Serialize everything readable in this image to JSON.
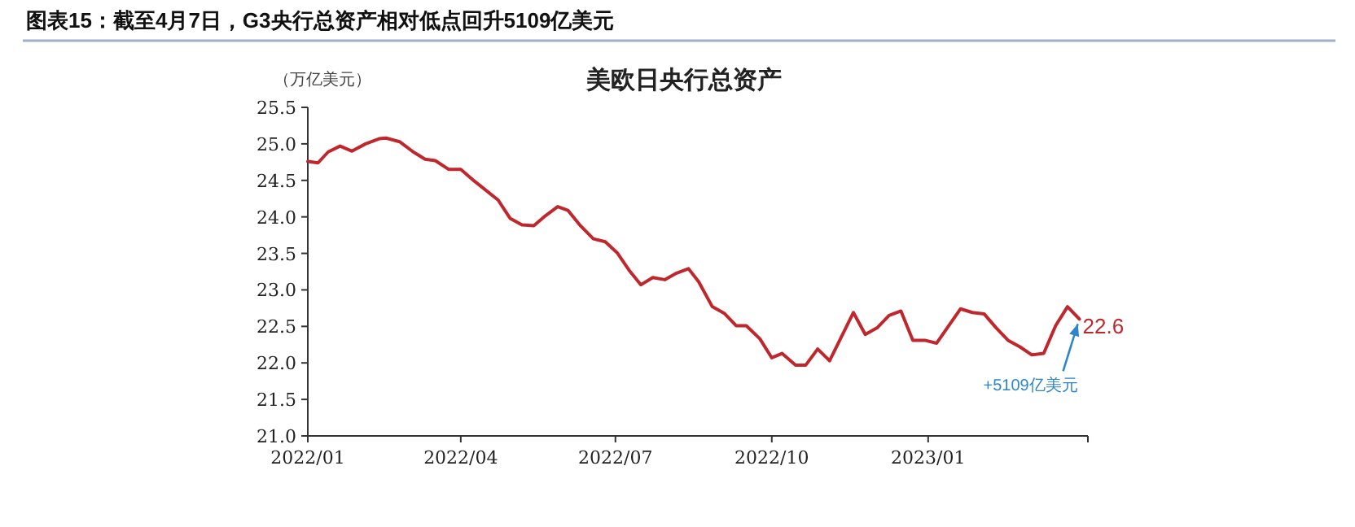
{
  "chart_data": {
    "type": "line",
    "title": "美欧日央行总资产",
    "subtitle": "图表15：截至4月7日，G3央行总资产相对低点回升5109亿美元",
    "ylabel": "（万亿美元）",
    "x": [
      "2022-01-01",
      "2022-01-07",
      "2022-01-13",
      "2022-01-20",
      "2022-01-27",
      "2022-02-04",
      "2022-02-12",
      "2022-02-16",
      "2022-02-24",
      "2022-03-04",
      "2022-03-11",
      "2022-03-17",
      "2022-03-25",
      "2022-04-01",
      "2022-04-09",
      "2022-04-15",
      "2022-04-23",
      "2022-04-30",
      "2022-05-07",
      "2022-05-14",
      "2022-05-20",
      "2022-05-28",
      "2022-06-03",
      "2022-06-10",
      "2022-06-18",
      "2022-06-25",
      "2022-07-02",
      "2022-07-09",
      "2022-07-16",
      "2022-07-23",
      "2022-07-30",
      "2022-08-06",
      "2022-08-13",
      "2022-08-19",
      "2022-08-27",
      "2022-09-03",
      "2022-09-10",
      "2022-09-16",
      "2022-09-24",
      "2022-10-01",
      "2022-10-07",
      "2022-10-15",
      "2022-10-21",
      "2022-10-28",
      "2022-11-04",
      "2022-11-18",
      "2022-11-25",
      "2022-12-02",
      "2022-12-09",
      "2022-12-16",
      "2022-12-23",
      "2022-12-30",
      "2023-01-06",
      "2023-01-20",
      "2023-01-27",
      "2023-02-03",
      "2023-02-10",
      "2023-02-17",
      "2023-02-24",
      "2023-03-03",
      "2023-03-10",
      "2023-03-17",
      "2023-03-24",
      "2023-03-31"
    ],
    "series": [
      {
        "color": "#c0272d",
        "values": [
          24.76,
          24.74,
          24.89,
          24.97,
          24.9,
          25.0,
          25.07,
          25.08,
          25.03,
          24.89,
          24.79,
          24.77,
          24.65,
          24.65,
          24.49,
          24.38,
          24.23,
          23.98,
          23.89,
          23.88,
          24.0,
          24.14,
          24.09,
          23.89,
          23.7,
          23.66,
          23.51,
          23.27,
          23.07,
          23.17,
          23.14,
          23.23,
          23.29,
          23.11,
          22.77,
          22.68,
          22.51,
          22.51,
          22.33,
          22.07,
          22.13,
          21.97,
          21.97,
          22.19,
          22.03,
          22.69,
          22.39,
          22.48,
          22.65,
          22.71,
          22.31,
          22.31,
          22.27,
          22.74,
          22.69,
          22.67,
          22.48,
          22.31,
          22.22,
          22.11,
          22.13,
          22.51,
          22.77,
          22.6
        ],
        "value_labels": [
          null,
          null,
          null,
          null,
          null,
          null,
          null,
          null,
          null,
          null,
          null,
          null,
          null,
          null,
          null,
          null,
          null,
          null,
          null,
          null,
          null,
          null,
          null,
          null,
          null,
          null,
          null,
          null,
          null,
          null,
          null,
          null,
          null,
          null,
          null,
          null,
          null,
          null,
          null,
          null,
          null,
          null,
          null,
          null,
          null,
          null,
          null,
          null,
          null,
          null,
          null,
          null,
          null,
          null,
          null,
          null,
          null,
          null,
          null,
          null,
          null,
          null,
          null,
          "22.6"
        ]
      }
    ],
    "annotations": [
      {
        "text": "+5109亿美元",
        "x": "2023-03-31",
        "y": 22.6
      }
    ],
    "xlim": [
      "2022-01-01",
      "2023-04-05"
    ],
    "xticks": [
      {
        "value": "2022-01-01",
        "label": "2022/01"
      },
      {
        "value": "2022-04-01",
        "label": "2022/04"
      },
      {
        "value": "2022-07-01",
        "label": "2022/07"
      },
      {
        "value": "2022-10-01",
        "label": "2022/10"
      },
      {
        "value": "2023-01-01",
        "label": "2023/01"
      },
      {
        "value": "2023-04-05",
        "label": null
      }
    ],
    "ylim": [
      21.0,
      25.5
    ],
    "yticks": [
      {
        "value": 21,
        "label": "21.0"
      },
      {
        "value": 21.5,
        "label": "21.5"
      },
      {
        "value": 22,
        "label": "22.0"
      },
      {
        "value": 22.5,
        "label": "22.5"
      },
      {
        "value": 23,
        "label": "23.0"
      },
      {
        "value": 23.5,
        "label": "23.5"
      },
      {
        "value": 24,
        "label": "24.0"
      },
      {
        "value": 24.5,
        "label": "24.5"
      },
      {
        "value": 25,
        "label": "25.0"
      },
      {
        "value": 25.5,
        "label": "25.5"
      }
    ],
    "line_style": "solid"
  }
}
